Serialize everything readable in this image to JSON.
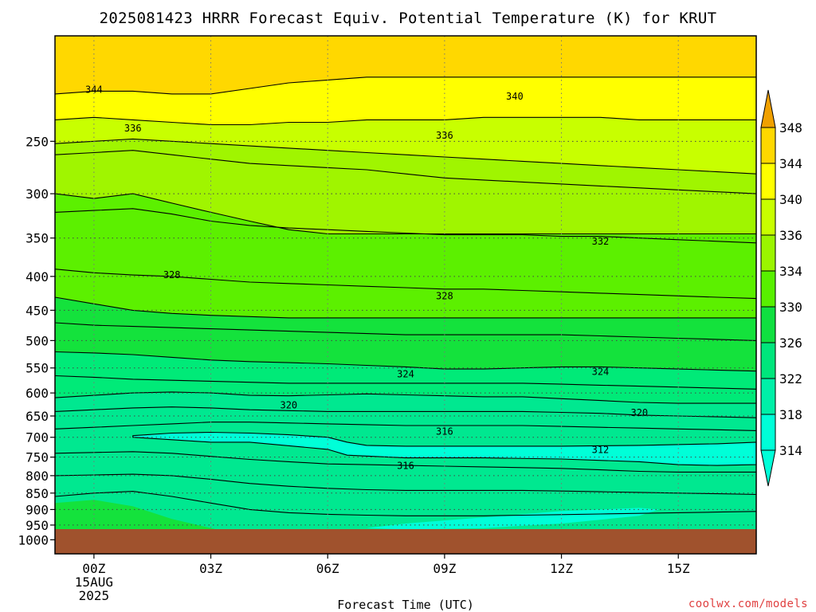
{
  "chart_data": {
    "type": "contour",
    "title": "2025081423 HRRR Forecast Equiv. Potential Temperature (K) for KRUT",
    "xlabel": "Forecast Time (UTC)",
    "ylabel": "",
    "x_ticks": [
      {
        "t": 0,
        "label": "00Z",
        "sub": [
          "15AUG",
          "2025"
        ]
      },
      {
        "t": 3,
        "label": "03Z"
      },
      {
        "t": 6,
        "label": "06Z"
      },
      {
        "t": 9,
        "label": "09Z"
      },
      {
        "t": 12,
        "label": "12Z"
      },
      {
        "t": 15,
        "label": "15Z"
      }
    ],
    "xlim": [
      -1,
      17
    ],
    "y_ticks": [
      250,
      300,
      350,
      400,
      450,
      500,
      550,
      600,
      650,
      700,
      750,
      800,
      850,
      900,
      950,
      1000
    ],
    "ylim_hPa": [
      1050,
      200
    ],
    "y_scale": "log",
    "colorbar": {
      "levels": [
        314,
        318,
        322,
        326,
        330,
        334,
        336,
        340,
        344,
        348
      ],
      "colors": [
        "#00ffd8",
        "#00f0a8",
        "#00e67c",
        "#10e040",
        "#58f000",
        "#9bf500",
        "#c8ff00",
        "#ffff00",
        "#ffd800",
        "#f0a000"
      ],
      "extend": "both"
    },
    "contour_labels": [
      {
        "t": 0.0,
        "p": 209,
        "text": "344"
      },
      {
        "t": 10.8,
        "p": 214,
        "text": "340"
      },
      {
        "t": 1.0,
        "p": 239,
        "text": "336"
      },
      {
        "t": 9.0,
        "p": 245,
        "text": "336"
      },
      {
        "t": 13.0,
        "p": 354,
        "text": "332"
      },
      {
        "t": 2.0,
        "p": 398,
        "text": "328"
      },
      {
        "t": 9.0,
        "p": 428,
        "text": "328"
      },
      {
        "t": 8.0,
        "p": 562,
        "text": "324"
      },
      {
        "t": 13.0,
        "p": 557,
        "text": "324"
      },
      {
        "t": 5.0,
        "p": 626,
        "text": "320"
      },
      {
        "t": 14.0,
        "p": 643,
        "text": "320"
      },
      {
        "t": 9.0,
        "p": 686,
        "text": "316"
      },
      {
        "t": 13.0,
        "p": 731,
        "text": "312"
      },
      {
        "t": 8.0,
        "p": 773,
        "text": "316"
      }
    ],
    "ground_color": "#a0522d",
    "credit": "coolwx.com/models"
  }
}
